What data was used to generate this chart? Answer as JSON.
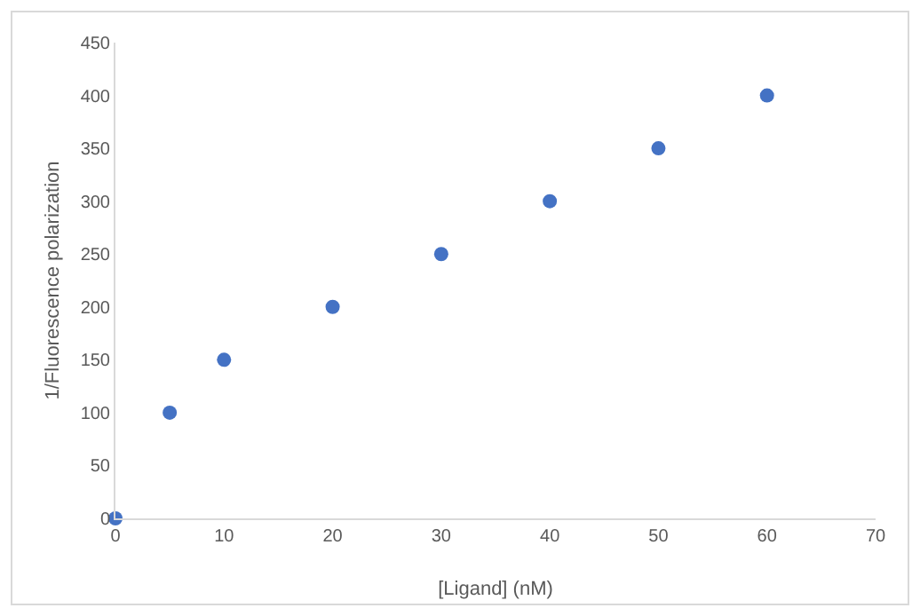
{
  "chart_data": {
    "type": "scatter",
    "xlabel": "[Ligand] (nM)",
    "ylabel": "1/Fluorescence polarization",
    "x": [
      0,
      5,
      10,
      20,
      30,
      40,
      50,
      60
    ],
    "values": [
      0,
      100,
      150,
      200,
      250,
      300,
      350,
      400
    ],
    "color": "#4472c4",
    "marker": "circle",
    "xlim": [
      0,
      70
    ],
    "xticks": [
      0,
      10,
      20,
      30,
      40,
      50,
      60,
      70
    ],
    "ylim": [
      0,
      450
    ],
    "yticks": [
      0,
      50,
      100,
      150,
      200,
      250,
      300,
      350,
      400,
      450
    ],
    "grid": false,
    "legend": false
  }
}
